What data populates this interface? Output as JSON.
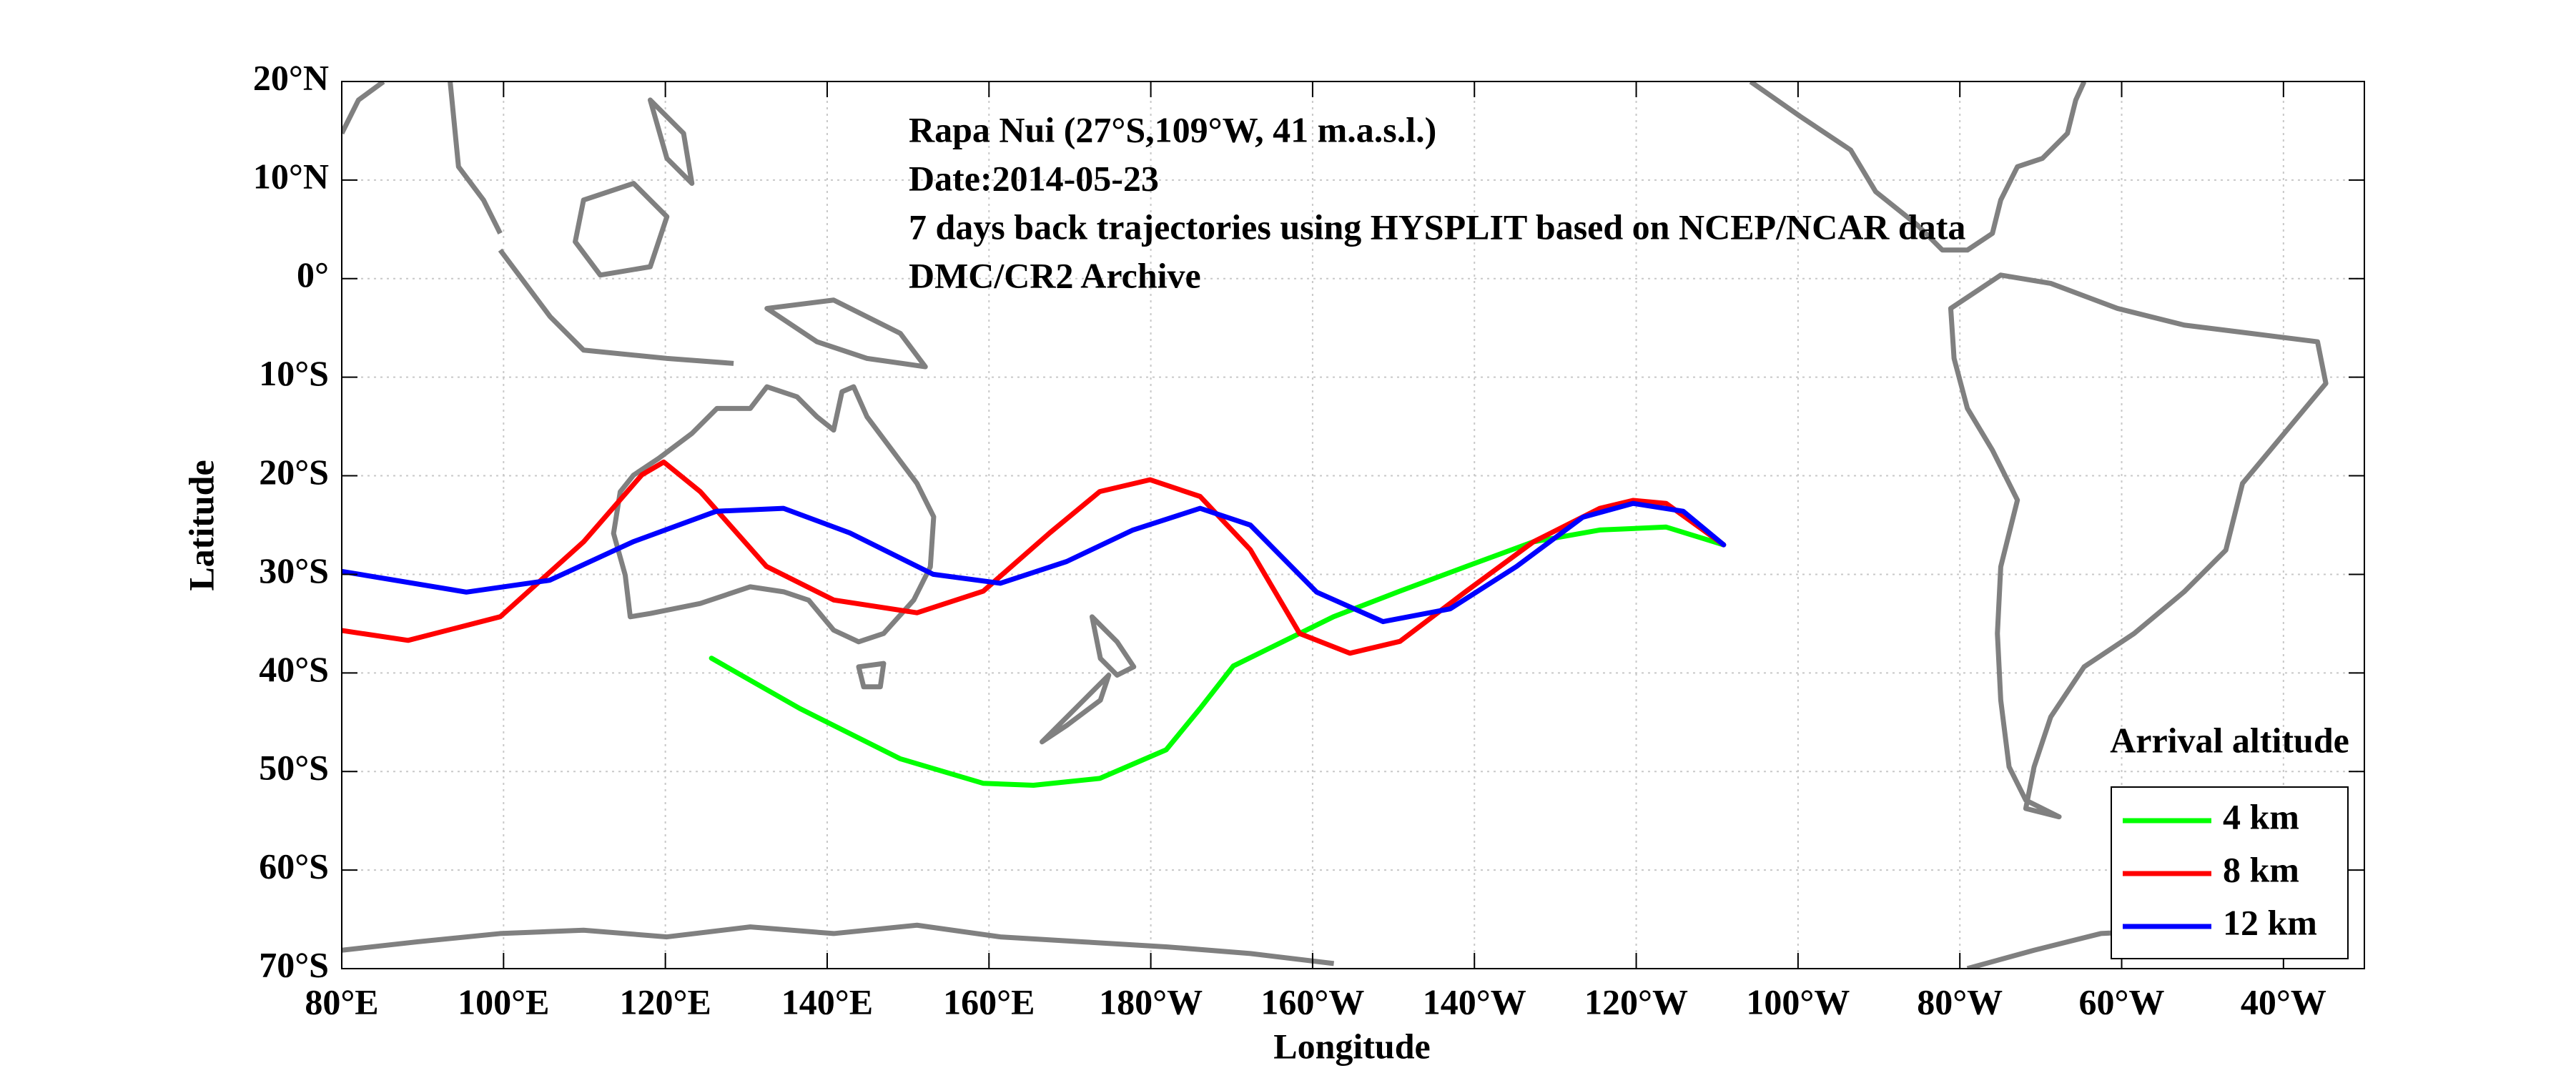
{
  "chart_data": {
    "type": "line",
    "annotations": [
      "Rapa Nui (27°S,109°W, 41 m.a.s.l.)",
      "Date:2014-05-23",
      "7 days back trajectories using HYSPLIT based on NCEP/NCAR data",
      "DMC/CR2 Archive"
    ],
    "x_label": "Longitude",
    "y_label": "Latitude",
    "legend_title": "Arrival altitude",
    "legend_loc": "lower right",
    "grid": true,
    "xlim": [
      80,
      330
    ],
    "xticks": [
      {
        "value": 80,
        "label": "80°E"
      },
      {
        "value": 100,
        "label": "100°E"
      },
      {
        "value": 120,
        "label": "120°E"
      },
      {
        "value": 140,
        "label": "140°E"
      },
      {
        "value": 160,
        "label": "160°E"
      },
      {
        "value": 180,
        "label": "180°W"
      },
      {
        "value": 200,
        "label": "160°W"
      },
      {
        "value": 220,
        "label": "140°W"
      },
      {
        "value": 240,
        "label": "120°W"
      },
      {
        "value": 260,
        "label": "100°W"
      },
      {
        "value": 280,
        "label": "80°W"
      },
      {
        "value": 300,
        "label": "60°W"
      },
      {
        "value": 320,
        "label": "40°W"
      }
    ],
    "ylim": [
      -70,
      20
    ],
    "yticks": [
      {
        "value": -70,
        "label": "70°S"
      },
      {
        "value": -60,
        "label": "60°S"
      },
      {
        "value": -50,
        "label": "50°S"
      },
      {
        "value": -40,
        "label": "40°S"
      },
      {
        "value": -30,
        "label": "30°S"
      },
      {
        "value": -20,
        "label": "20°S"
      },
      {
        "value": -10,
        "label": "10°S"
      },
      {
        "value": 0,
        "label": "0°"
      },
      {
        "value": 10,
        "label": "10°N"
      },
      {
        "value": 20,
        "label": "20°N"
      }
    ],
    "series": [
      {
        "name": "4 km",
        "color": "#00ff00",
        "x": [
          125.7,
          136.6,
          149.0,
          159.3,
          165.5,
          173.7,
          181.9,
          186.1,
          190.2,
          196.4,
          202.6,
          210.8,
          219.0,
          227.3,
          235.5,
          243.7,
          250.8
        ],
        "values": [
          -38.5,
          -43.6,
          -48.7,
          -51.2,
          -51.4,
          -50.7,
          -47.8,
          -43.6,
          -39.3,
          -36.8,
          -34.3,
          -31.7,
          -29.2,
          -26.7,
          -25.5,
          -25.2,
          -27.0
        ]
      },
      {
        "name": "8 km",
        "color": "#ff0000",
        "x": [
          80.0,
          88.2,
          99.6,
          109.9,
          117.1,
          119.8,
          124.3,
          132.5,
          140.8,
          151.1,
          159.3,
          167.5,
          173.7,
          179.9,
          186.1,
          192.3,
          198.4,
          204.6,
          210.8,
          219.0,
          227.3,
          235.5,
          239.6,
          243.7,
          250.8
        ],
        "values": [
          -35.7,
          -36.7,
          -34.3,
          -26.7,
          -19.9,
          -18.6,
          -21.6,
          -29.2,
          -32.6,
          -33.9,
          -31.7,
          -25.8,
          -21.6,
          -20.4,
          -22.1,
          -27.5,
          -36.0,
          -38.0,
          -36.8,
          -31.7,
          -26.7,
          -23.3,
          -22.5,
          -22.8,
          -27.0
        ]
      },
      {
        "name": "12 km",
        "color": "#0000ff",
        "x": [
          80.0,
          95.4,
          105.7,
          116.0,
          126.3,
          134.6,
          142.8,
          153.1,
          161.4,
          169.6,
          177.8,
          186.1,
          192.3,
          200.5,
          208.7,
          217.0,
          225.2,
          233.4,
          239.6,
          245.8,
          250.8
        ],
        "values": [
          -29.7,
          -31.8,
          -30.6,
          -26.7,
          -23.6,
          -23.3,
          -25.8,
          -30.0,
          -30.9,
          -28.7,
          -25.5,
          -23.3,
          -25.0,
          -31.8,
          -34.8,
          -33.5,
          -29.2,
          -24.2,
          -22.8,
          -23.6,
          -27.0
        ]
      }
    ]
  }
}
